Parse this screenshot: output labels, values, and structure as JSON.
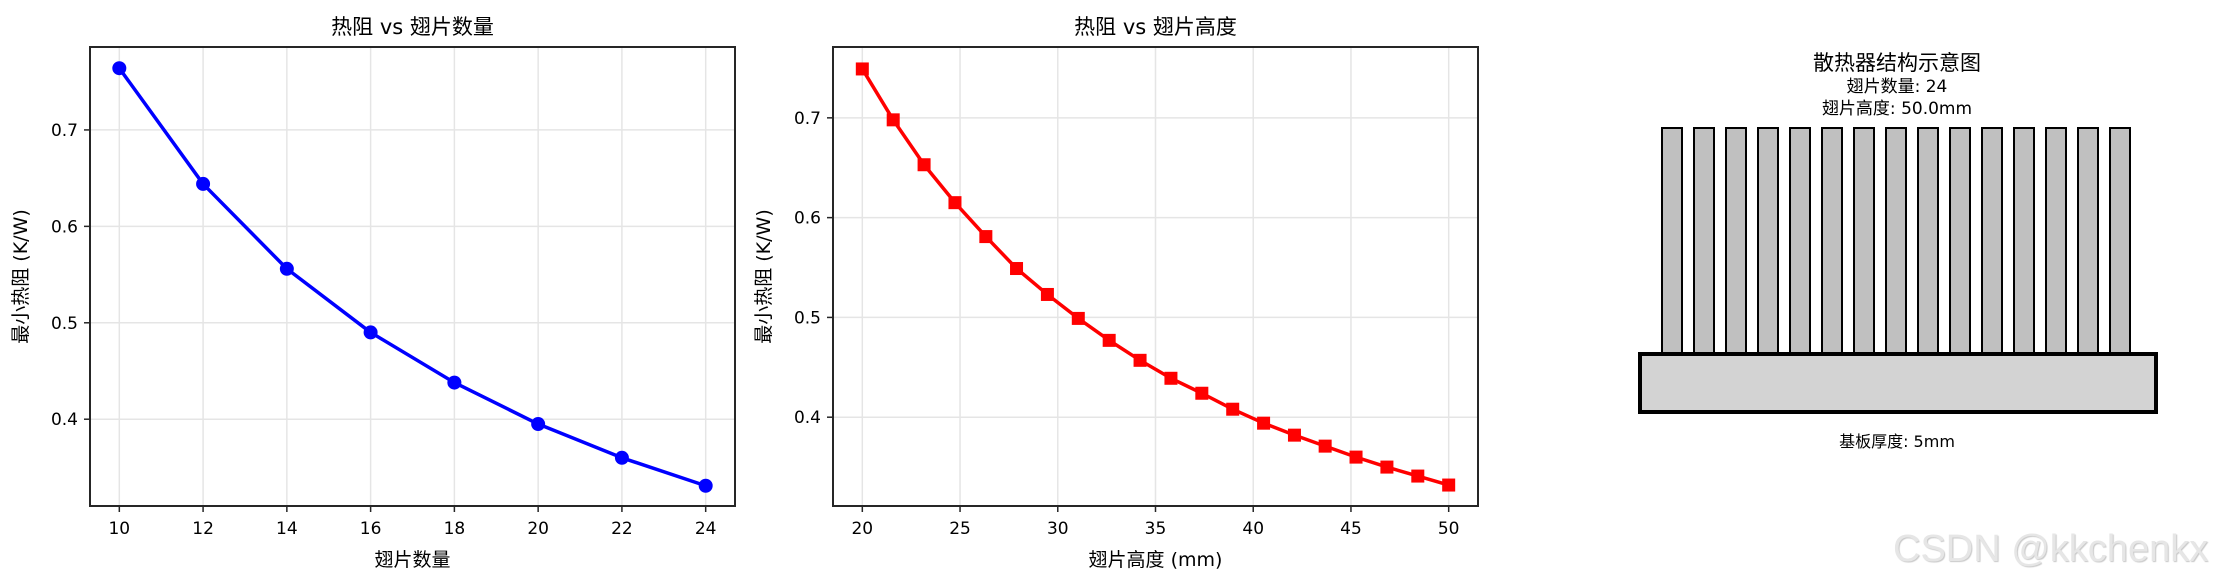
{
  "chart_data": [
    {
      "type": "line",
      "title": "热阻 vs 翅片数量",
      "xlabel": "翅片数量",
      "ylabel": "最小热阻 (K/W)",
      "x": [
        10,
        12,
        14,
        16,
        18,
        20,
        22,
        24
      ],
      "series": [
        {
          "name": "最小热阻",
          "color": "#0000ff",
          "marker": "circle",
          "values": [
            0.764,
            0.644,
            0.556,
            0.49,
            0.438,
            0.395,
            0.36,
            0.331
          ]
        }
      ],
      "xticks": [
        10,
        12,
        14,
        16,
        18,
        20,
        22,
        24
      ],
      "yticks": [
        0.4,
        0.5,
        0.6,
        0.7
      ],
      "xlim": [
        9.3,
        24.7
      ],
      "ylim": [
        0.31,
        0.786
      ],
      "grid": true
    },
    {
      "type": "line",
      "title": "热阻 vs 翅片高度",
      "xlabel": "翅片高度 (mm)",
      "ylabel": "最小热阻 (K/W)",
      "x": [
        20.0,
        21.58,
        23.16,
        24.74,
        26.32,
        27.89,
        29.47,
        31.05,
        32.63,
        34.21,
        35.79,
        37.37,
        38.95,
        40.53,
        42.11,
        43.68,
        45.26,
        46.84,
        48.42,
        50.0
      ],
      "series": [
        {
          "name": "最小热阻",
          "color": "#ff0000",
          "marker": "square",
          "values": [
            0.749,
            0.698,
            0.653,
            0.615,
            0.581,
            0.549,
            0.523,
            0.499,
            0.477,
            0.457,
            0.439,
            0.424,
            0.408,
            0.394,
            0.382,
            0.371,
            0.36,
            0.35,
            0.341,
            0.332
          ]
        }
      ],
      "xticks": [
        20,
        25,
        30,
        35,
        40,
        45,
        50
      ],
      "yticks": [
        0.4,
        0.5,
        0.6,
        0.7
      ],
      "xlim": [
        18.5,
        51.5
      ],
      "ylim": [
        0.311,
        0.771
      ],
      "grid": true
    },
    {
      "type": "diagram",
      "title": "散热器结构示意图",
      "subtitle_lines": [
        "翅片数量: 24",
        "翅片高度: 50.0mm"
      ],
      "drawn_fin_count": 15,
      "base_label": "基板厚度: 5mm",
      "fin_color": "#c0c0c0",
      "base_color": "#d3d3d3"
    }
  ],
  "watermark": "CSDN @kkchenkx"
}
